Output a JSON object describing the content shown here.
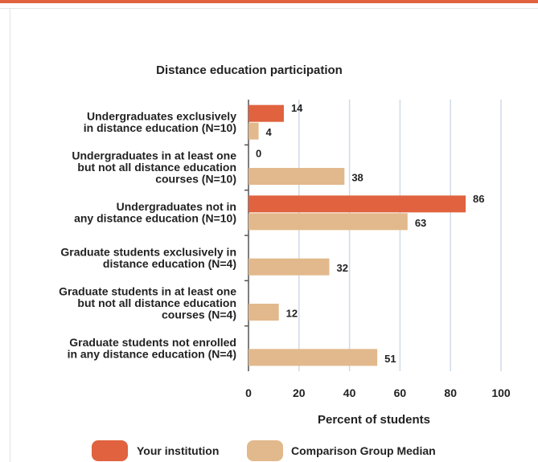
{
  "chart_data": {
    "type": "bar",
    "orientation": "horizontal",
    "title": "Distance education participation",
    "xlabel": "Percent of students",
    "ylabel": "",
    "xlim": [
      0,
      100
    ],
    "xticks": [
      "0",
      "20",
      "40",
      "60",
      "80",
      "100"
    ],
    "grid": true,
    "legend_position": "bottom",
    "categories": [
      [
        "Undergraduates exclusively",
        "in distance education (N=10)"
      ],
      [
        "Undergraduates in at least one",
        "but not all distance education",
        "courses (N=10)"
      ],
      [
        "Undergraduates not in",
        "any distance education (N=10)"
      ],
      [
        "Graduate students exclusively in",
        "distance education (N=4)"
      ],
      [
        "Graduate students in at least one",
        "but not all distance education",
        "courses (N=4)"
      ],
      [
        "Graduate students not enrolled",
        "in any distance education (N=4)"
      ]
    ],
    "series": [
      {
        "name": "Your institution",
        "color": "#e0623f",
        "values": [
          14,
          0,
          86,
          null,
          null,
          null
        ]
      },
      {
        "name": "Comparison Group Median",
        "color": "#e2b98c",
        "values": [
          4,
          38,
          63,
          32,
          12,
          51
        ]
      }
    ]
  },
  "colors": {
    "accent_bar": "#e0623f",
    "grid": "#cfdbe6"
  }
}
